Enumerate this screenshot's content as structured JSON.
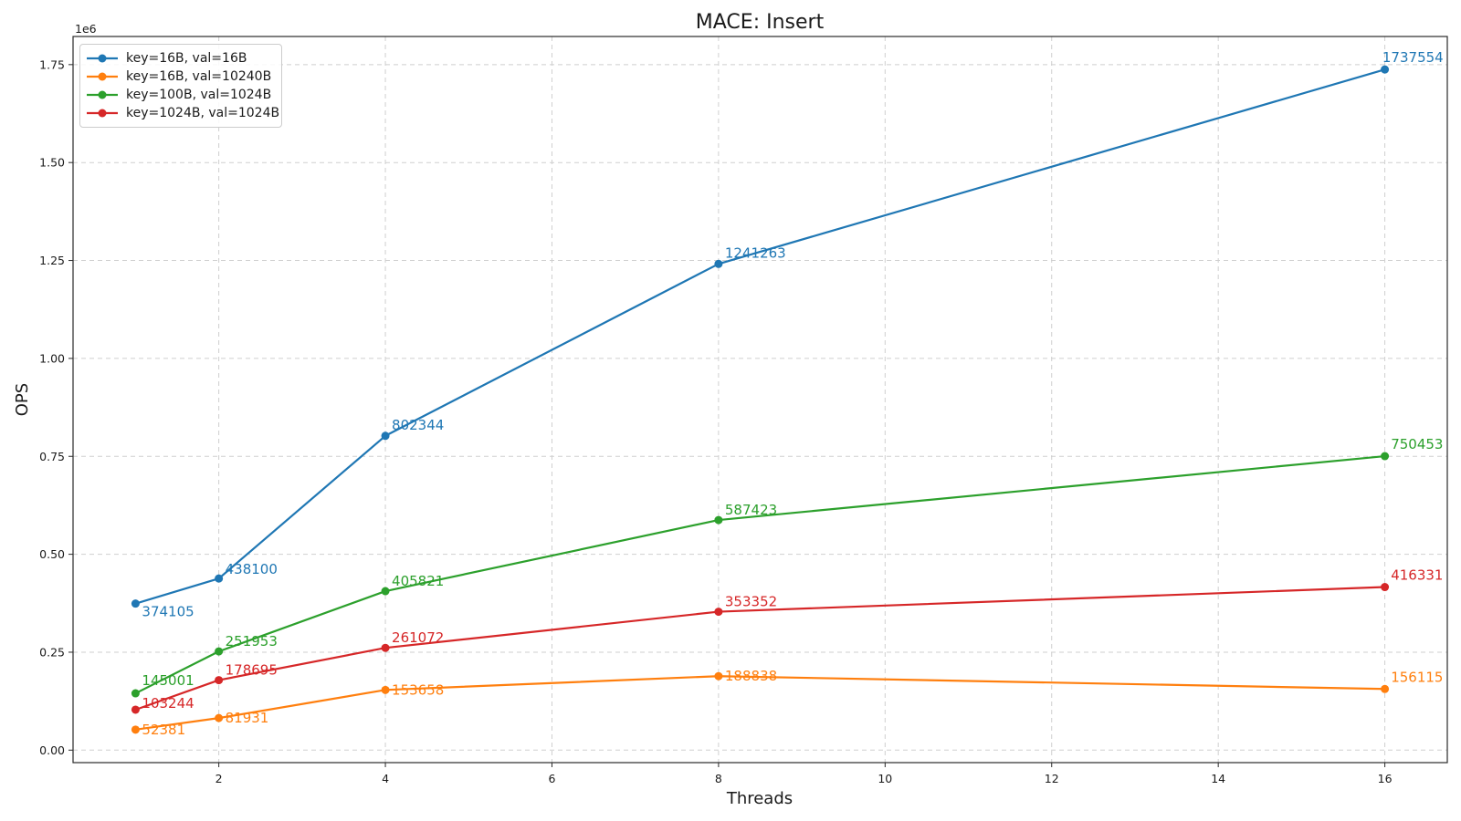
{
  "chart_data": {
    "type": "line",
    "title": "MACE: Insert",
    "xlabel": "Threads",
    "ylabel": "OPS",
    "y_offset_text": "1e6",
    "grid": true,
    "legend_position": "upper left",
    "x": [
      1,
      2,
      4,
      8,
      16
    ],
    "xlim": [
      0.25,
      16.75
    ],
    "ylim": [
      -31878,
      1821813
    ],
    "xticks": [
      2,
      4,
      6,
      8,
      10,
      12,
      14,
      16
    ],
    "xtick_labels": [
      "2",
      "4",
      "6",
      "8",
      "10",
      "12",
      "14",
      "16"
    ],
    "yticks": [
      0,
      250000,
      500000,
      750000,
      1000000,
      1250000,
      1500000,
      1750000
    ],
    "ytick_labels": [
      "0.00",
      "0.25",
      "0.50",
      "0.75",
      "1.00",
      "1.25",
      "1.50",
      "1.75"
    ],
    "series": [
      {
        "name": "key=16B, val=16B",
        "color": "#1f77b4",
        "values": [
          374105,
          438100,
          802344,
          1241263,
          1737554
        ],
        "label_dy": [
          14,
          -5,
          -7,
          -7,
          -8
        ]
      },
      {
        "name": "key=16B, val=10240B",
        "color": "#ff7f0e",
        "values": [
          52381,
          81931,
          153658,
          188838,
          156115
        ],
        "label_dy": [
          5,
          5,
          5,
          5,
          -8
        ]
      },
      {
        "name": "key=100B, val=1024B",
        "color": "#2ca02c",
        "values": [
          145001,
          251953,
          405821,
          587423,
          750453
        ],
        "label_dy": [
          -9,
          -6,
          -6,
          -6,
          -8
        ]
      },
      {
        "name": "key=1024B, val=1024B",
        "color": "#d62728",
        "values": [
          103244,
          178695,
          261072,
          353352,
          416331
        ],
        "label_dy": [
          -2,
          -6,
          -6,
          -6,
          -8
        ]
      }
    ],
    "style": {
      "grid_color": "#cfcfcf",
      "spine_color": "#2a2a2a",
      "text_color": "#1a1a1a"
    }
  }
}
